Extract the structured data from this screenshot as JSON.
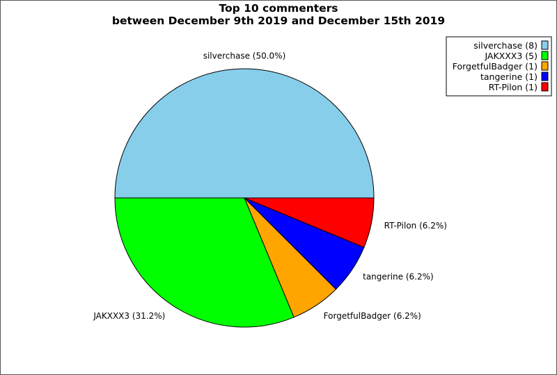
{
  "chart_data": {
    "type": "pie",
    "title": "Top 10 commenters",
    "subtitle": "between December 9th 2019 and December 15th 2019",
    "slices": [
      {
        "name": "silverchase",
        "value": 8,
        "label": "silverchase (50.0%)",
        "legend": "silverchase (8)",
        "color": "#87ceeb"
      },
      {
        "name": "JAKXXX3",
        "value": 5,
        "label": "JAKXXX3 (31.2%)",
        "legend": "JAKXXX3 (5)",
        "color": "#00ff00"
      },
      {
        "name": "ForgetfulBadger",
        "value": 1,
        "label": "ForgetfulBadger (6.2%)",
        "legend": "ForgetfulBadger (1)",
        "color": "#ffa500"
      },
      {
        "name": "tangerine",
        "value": 1,
        "label": "tangerine (6.2%)",
        "legend": "tangerine (1)",
        "color": "#0000ff"
      },
      {
        "name": "RT-Pilon",
        "value": 1,
        "label": "RT-Pilon (6.2%)",
        "legend": "RT-Pilon (1)",
        "color": "#ff0000"
      }
    ],
    "legend_position": "top-right"
  }
}
